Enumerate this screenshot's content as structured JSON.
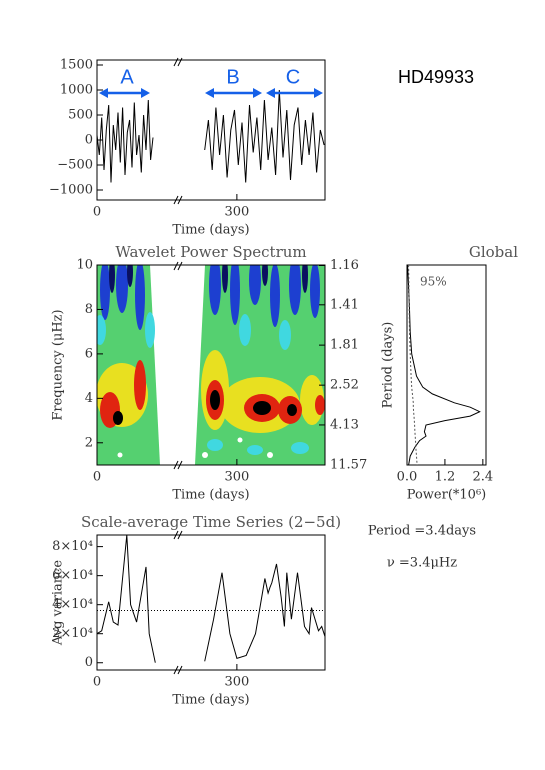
{
  "chart_data": [
    {
      "type": "line",
      "xlim": [
        0,
        489
      ],
      "xticks": [
        0,
        300
      ],
      "xlabel": "Time (days)",
      "ylim": [
        -1200,
        1600
      ],
      "yticks": [
        {
          "value": -1000,
          "label": "−1000"
        },
        {
          "value": -500,
          "label": "−500"
        },
        0,
        500,
        1000,
        1500
      ],
      "series": [
        {
          "color": "#000000",
          "x": [
            0,
            5,
            10,
            15,
            20,
            25,
            30,
            35,
            40,
            45,
            50,
            55,
            60,
            65,
            70,
            75,
            80,
            85,
            90,
            95,
            100,
            105,
            110,
            115,
            120,
            175,
            231,
            239,
            247,
            255,
            263,
            271,
            279,
            287,
            295,
            303,
            311,
            319,
            327,
            335,
            343,
            351,
            359,
            367,
            375,
            383,
            391,
            399,
            407,
            415,
            423,
            431,
            439,
            447,
            455,
            463,
            471,
            479,
            487
          ],
          "values": [
            100,
            -300,
            450,
            -600,
            200,
            700,
            -850,
            300,
            -200,
            550,
            -450,
            650,
            -700,
            150,
            400,
            -550,
            750,
            -300,
            100,
            -650,
            500,
            -200,
            800,
            -400,
            50,
            null,
            -200,
            400,
            -600,
            650,
            -300,
            500,
            -750,
            200,
            600,
            -500,
            350,
            -850,
            700,
            -250,
            450,
            -600,
            800,
            -400,
            250,
            -700,
            1000,
            -350,
            600,
            -800,
            300,
            650,
            -500,
            400,
            -300,
            550,
            -650,
            200,
            -100
          ]
        }
      ],
      "annotations": [
        {
          "text": "A",
          "color": "#1560e8"
        },
        {
          "text": "B",
          "color": "#1560e8"
        },
        {
          "text": "C",
          "color": "#1560e8"
        },
        {
          "text": "HD49933",
          "color": "#000000"
        }
      ]
    },
    {
      "type": "heatmap",
      "title": "Wavelet Power Spectrum",
      "xlim": [
        0,
        489
      ],
      "xticks": [
        0,
        300
      ],
      "xlabel": "Time (days)",
      "ylim": [
        1,
        10
      ],
      "yticks": [
        2,
        4,
        6,
        8,
        10
      ],
      "ylabel": "Frequency (μHz)",
      "y2lim": [
        11.57,
        1.16
      ],
      "y2ticks": [
        1.16,
        1.41,
        1.81,
        2.52,
        4.13,
        11.57
      ]
    },
    {
      "type": "line",
      "orientation": "horizontal",
      "title": "Global",
      "xlim": [
        0,
        2.5
      ],
      "xticks": [
        {
          "value": 0,
          "label": "0.0"
        },
        1.2,
        2.4
      ],
      "xlabel": "Power(*10⁶)",
      "ylim": [
        1,
        10
      ],
      "ylabel": "Period (days)",
      "y": [
        10,
        9,
        8,
        7,
        6,
        5,
        4.5,
        4.2,
        3.8,
        3.6,
        3.4,
        3.2,
        3.0,
        2.8,
        2.5,
        2.3,
        2.1,
        1.8,
        1.4,
        1.0
      ],
      "series": [
        {
          "color": "#000000",
          "values": [
            0.02,
            0.05,
            0.08,
            0.1,
            0.15,
            0.3,
            0.5,
            0.8,
            1.5,
            2.0,
            2.3,
            2.0,
            1.2,
            0.6,
            0.55,
            0.6,
            0.4,
            0.25,
            0.1,
            0.05
          ]
        },
        {
          "color": "#555555",
          "dashed": true,
          "values": [
            0.05,
            0.06,
            0.07,
            0.08,
            0.1,
            0.13,
            0.15,
            0.17,
            0.2,
            0.2,
            0.21,
            0.22,
            0.23,
            0.24,
            0.25,
            0.26,
            0.27,
            0.28,
            0.3,
            0.32
          ]
        }
      ],
      "annotations": [
        {
          "text": "95%"
        },
        {
          "text": "Period =3.4days"
        },
        {
          "text": "ν =3.4μHz"
        }
      ]
    },
    {
      "type": "line",
      "title": "Scale-average Time Series (2−5d)",
      "xlim": [
        0,
        489
      ],
      "xticks": [
        0,
        300
      ],
      "xlabel": "Time (days)",
      "ylim": [
        -5000,
        88000
      ],
      "yticks": [
        0,
        {
          "value": 20000,
          "label": "2×10⁴"
        },
        {
          "value": 40000,
          "label": "4×10⁴"
        },
        {
          "value": 60000,
          "label": "6×10⁴"
        },
        {
          "value": 80000,
          "label": "8×10⁴"
        }
      ],
      "ylabel": "Avg variance",
      "reference_line": 36000,
      "series": [
        {
          "color": "#000000",
          "x": [
            0,
            10,
            25,
            35,
            45,
            64,
            72,
            85,
            105,
            112,
            125,
            175,
            231,
            250,
            268,
            285,
            300,
            320,
            340,
            360,
            367,
            371,
            375,
            385,
            395,
            402,
            407,
            417,
            430,
            445,
            455,
            460,
            475,
            482,
            489
          ],
          "values": [
            20000,
            22000,
            42000,
            28000,
            26000,
            88000,
            40000,
            28000,
            66000,
            20000,
            0,
            null,
            1000,
            30000,
            62000,
            20000,
            3000,
            5000,
            20000,
            58000,
            48000,
            52000,
            55000,
            68000,
            45000,
            25000,
            62000,
            30000,
            62000,
            25000,
            20000,
            38000,
            22000,
            25000,
            18000
          ]
        }
      ]
    }
  ]
}
